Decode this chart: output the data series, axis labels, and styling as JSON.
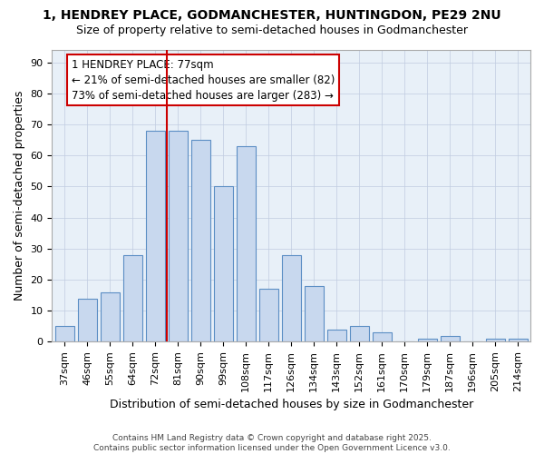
{
  "title": "1, HENDREY PLACE, GODMANCHESTER, HUNTINGDON, PE29 2NU",
  "subtitle": "Size of property relative to semi-detached houses in Godmanchester",
  "xlabel": "Distribution of semi-detached houses by size in Godmanchester",
  "ylabel": "Number of semi-detached properties",
  "categories": [
    "37sqm",
    "46sqm",
    "55sqm",
    "64sqm",
    "72sqm",
    "81sqm",
    "90sqm",
    "99sqm",
    "108sqm",
    "117sqm",
    "126sqm",
    "134sqm",
    "143sqm",
    "152sqm",
    "161sqm",
    "170sqm",
    "179sqm",
    "187sqm",
    "196sqm",
    "205sqm",
    "214sqm"
  ],
  "values": [
    5,
    14,
    16,
    28,
    68,
    68,
    65,
    50,
    63,
    17,
    28,
    18,
    4,
    5,
    3,
    0,
    1,
    2,
    0,
    1,
    1
  ],
  "bar_color": "#c8d8ee",
  "bar_edge_color": "#5b8ec4",
  "red_line_index": 5,
  "highlight_color": "#cc0000",
  "property_label": "1 HENDREY PLACE: 77sqm",
  "pct_smaller": 21,
  "pct_larger": 73,
  "n_smaller": 82,
  "n_larger": 283,
  "ylim": [
    0,
    94
  ],
  "yticks": [
    0,
    10,
    20,
    30,
    40,
    50,
    60,
    70,
    80,
    90
  ],
  "background_color": "#ffffff",
  "plot_bg_color": "#e8f0f8",
  "grid_color": "#c0cce0",
  "footer": "Contains HM Land Registry data © Crown copyright and database right 2025.\nContains public sector information licensed under the Open Government Licence v3.0.",
  "title_fontsize": 10,
  "subtitle_fontsize": 9,
  "axis_label_fontsize": 9,
  "tick_fontsize": 8,
  "annotation_fontsize": 8.5
}
